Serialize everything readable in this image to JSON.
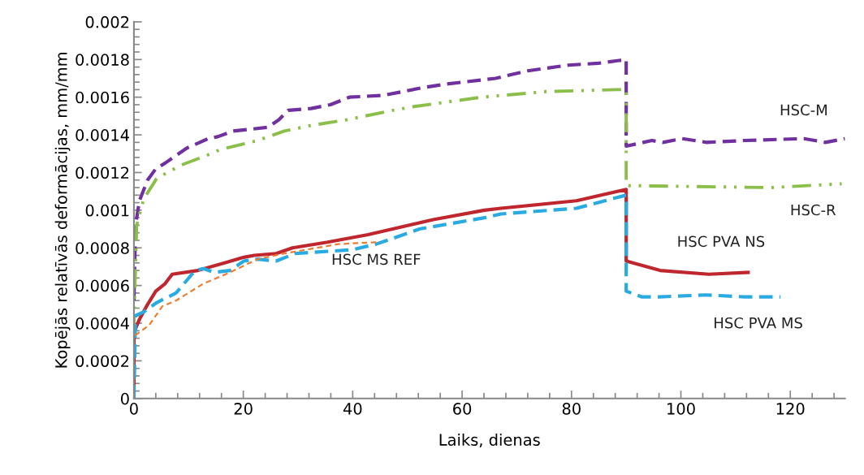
{
  "chart_data": {
    "type": "line",
    "xlabel": "Laiks, dienas",
    "ylabel": "Kopējās relatīvās deformācijas, mm/mm",
    "xlim": [
      0,
      130
    ],
    "xticks": [
      0,
      20,
      40,
      60,
      80,
      100,
      120
    ],
    "ylim": [
      0,
      0.002
    ],
    "yticks": [
      0,
      0.0002,
      0.0004,
      0.0006,
      0.0008,
      0.001,
      0.0012,
      0.0014,
      0.0016,
      0.0018,
      0.002
    ],
    "grid": false,
    "legend": false,
    "series": [
      {
        "name": "HSC-M",
        "color": "#7030a0",
        "line_style": "dashed",
        "x": [
          0,
          0.3,
          1.0,
          2.5,
          4,
          5.7,
          9.7,
          13.6,
          15.3,
          18.1,
          24.5,
          26.5,
          28.2,
          32.4,
          35.9,
          39.4,
          45.7,
          52.7,
          57.2,
          66.1,
          72,
          79.4,
          84.9,
          90,
          90,
          94.7,
          96.7,
          100.2,
          104.7,
          111.6,
          122.5,
          126.4,
          130
        ],
        "values": [
          0.00052,
          0.00092,
          0.00105,
          0.00116,
          0.00122,
          0.00125,
          0.00133,
          0.00138,
          0.00139,
          0.00142,
          0.00144,
          0.00148,
          0.00153,
          0.00154,
          0.00156,
          0.0016,
          0.00161,
          0.00165,
          0.00167,
          0.0017,
          0.00174,
          0.00177,
          0.00178,
          0.0018,
          0.00134,
          0.00137,
          0.00136,
          0.00138,
          0.00136,
          0.00137,
          0.00138,
          0.00136,
          0.00138
        ]
      },
      {
        "name": "HSC-R",
        "color": "#8cbf4a",
        "line_style": "dashdot",
        "x": [
          0,
          0.5,
          1.8,
          4.2,
          8.7,
          14.1,
          15.6,
          22.6,
          27.5,
          32.4,
          38.9,
          47.3,
          51.2,
          58.6,
          63.6,
          75.5,
          88.3,
          90,
          90,
          91.8,
          116.5,
          129.4
        ],
        "values": [
          0.0004,
          0.00092,
          0.00106,
          0.00117,
          0.00124,
          0.0013,
          0.00132,
          0.00137,
          0.00142,
          0.00145,
          0.00148,
          0.00153,
          0.00155,
          0.00158,
          0.0016,
          0.00163,
          0.00164,
          0.00164,
          0.00113,
          0.00113,
          0.00112,
          0.00114
        ]
      },
      {
        "name": "HSC PVA NS",
        "color": "#c0262d",
        "line_style": "solid",
        "x": [
          0,
          0,
          1.0,
          2.3,
          4,
          5.7,
          7,
          11.7,
          16.6,
          20.1,
          22,
          26,
          29,
          35.4,
          42.8,
          47.3,
          54.7,
          64.1,
          67.1,
          80.9,
          90,
          90,
          96.2,
          105.1,
          112.3
        ],
        "values": [
          0,
          0.00035,
          0.00042,
          0.00049,
          0.00057,
          0.00061,
          0.00066,
          0.00068,
          0.00072,
          0.00075,
          0.00076,
          0.00077,
          0.0008,
          0.00083,
          0.00087,
          0.0009,
          0.00095,
          0.001,
          0.00101,
          0.00105,
          0.00111,
          0.00073,
          0.00068,
          0.00066,
          0.00067
        ]
      },
      {
        "name": "HSC PVA MS",
        "color": "#29abe2",
        "line_style": "dashed",
        "x": [
          0,
          0.3,
          1.8,
          4.2,
          7.7,
          11.2,
          12.7,
          14.6,
          17.6,
          20.1,
          22.6,
          26,
          29.5,
          39.9,
          44.3,
          52.2,
          64.1,
          67.1,
          80.9,
          90,
          90,
          92.8,
          96.2,
          104.6,
          111.6,
          118.2
        ],
        "values": [
          0,
          0.00044,
          0.00046,
          0.00051,
          0.00056,
          0.00068,
          0.00069,
          0.00067,
          0.00068,
          0.00073,
          0.00074,
          0.00073,
          0.00077,
          0.00079,
          0.00082,
          0.0009,
          0.00096,
          0.00098,
          0.00101,
          0.00108,
          0.00057,
          0.00054,
          0.00054,
          0.00055,
          0.00054,
          0.00054
        ]
      },
      {
        "name": "HSC MS REF",
        "color": "#ed7d31",
        "line_style": "dotted",
        "x": [
          0,
          0,
          2.8,
          5.2,
          7.7,
          12.7,
          17.6,
          22.6,
          27.5,
          37.4,
          44.3
        ],
        "values": [
          0.00029,
          0.00033,
          0.00039,
          0.00049,
          0.00052,
          0.00061,
          0.00067,
          0.00074,
          0.00077,
          0.00082,
          0.00083
        ]
      }
    ]
  }
}
